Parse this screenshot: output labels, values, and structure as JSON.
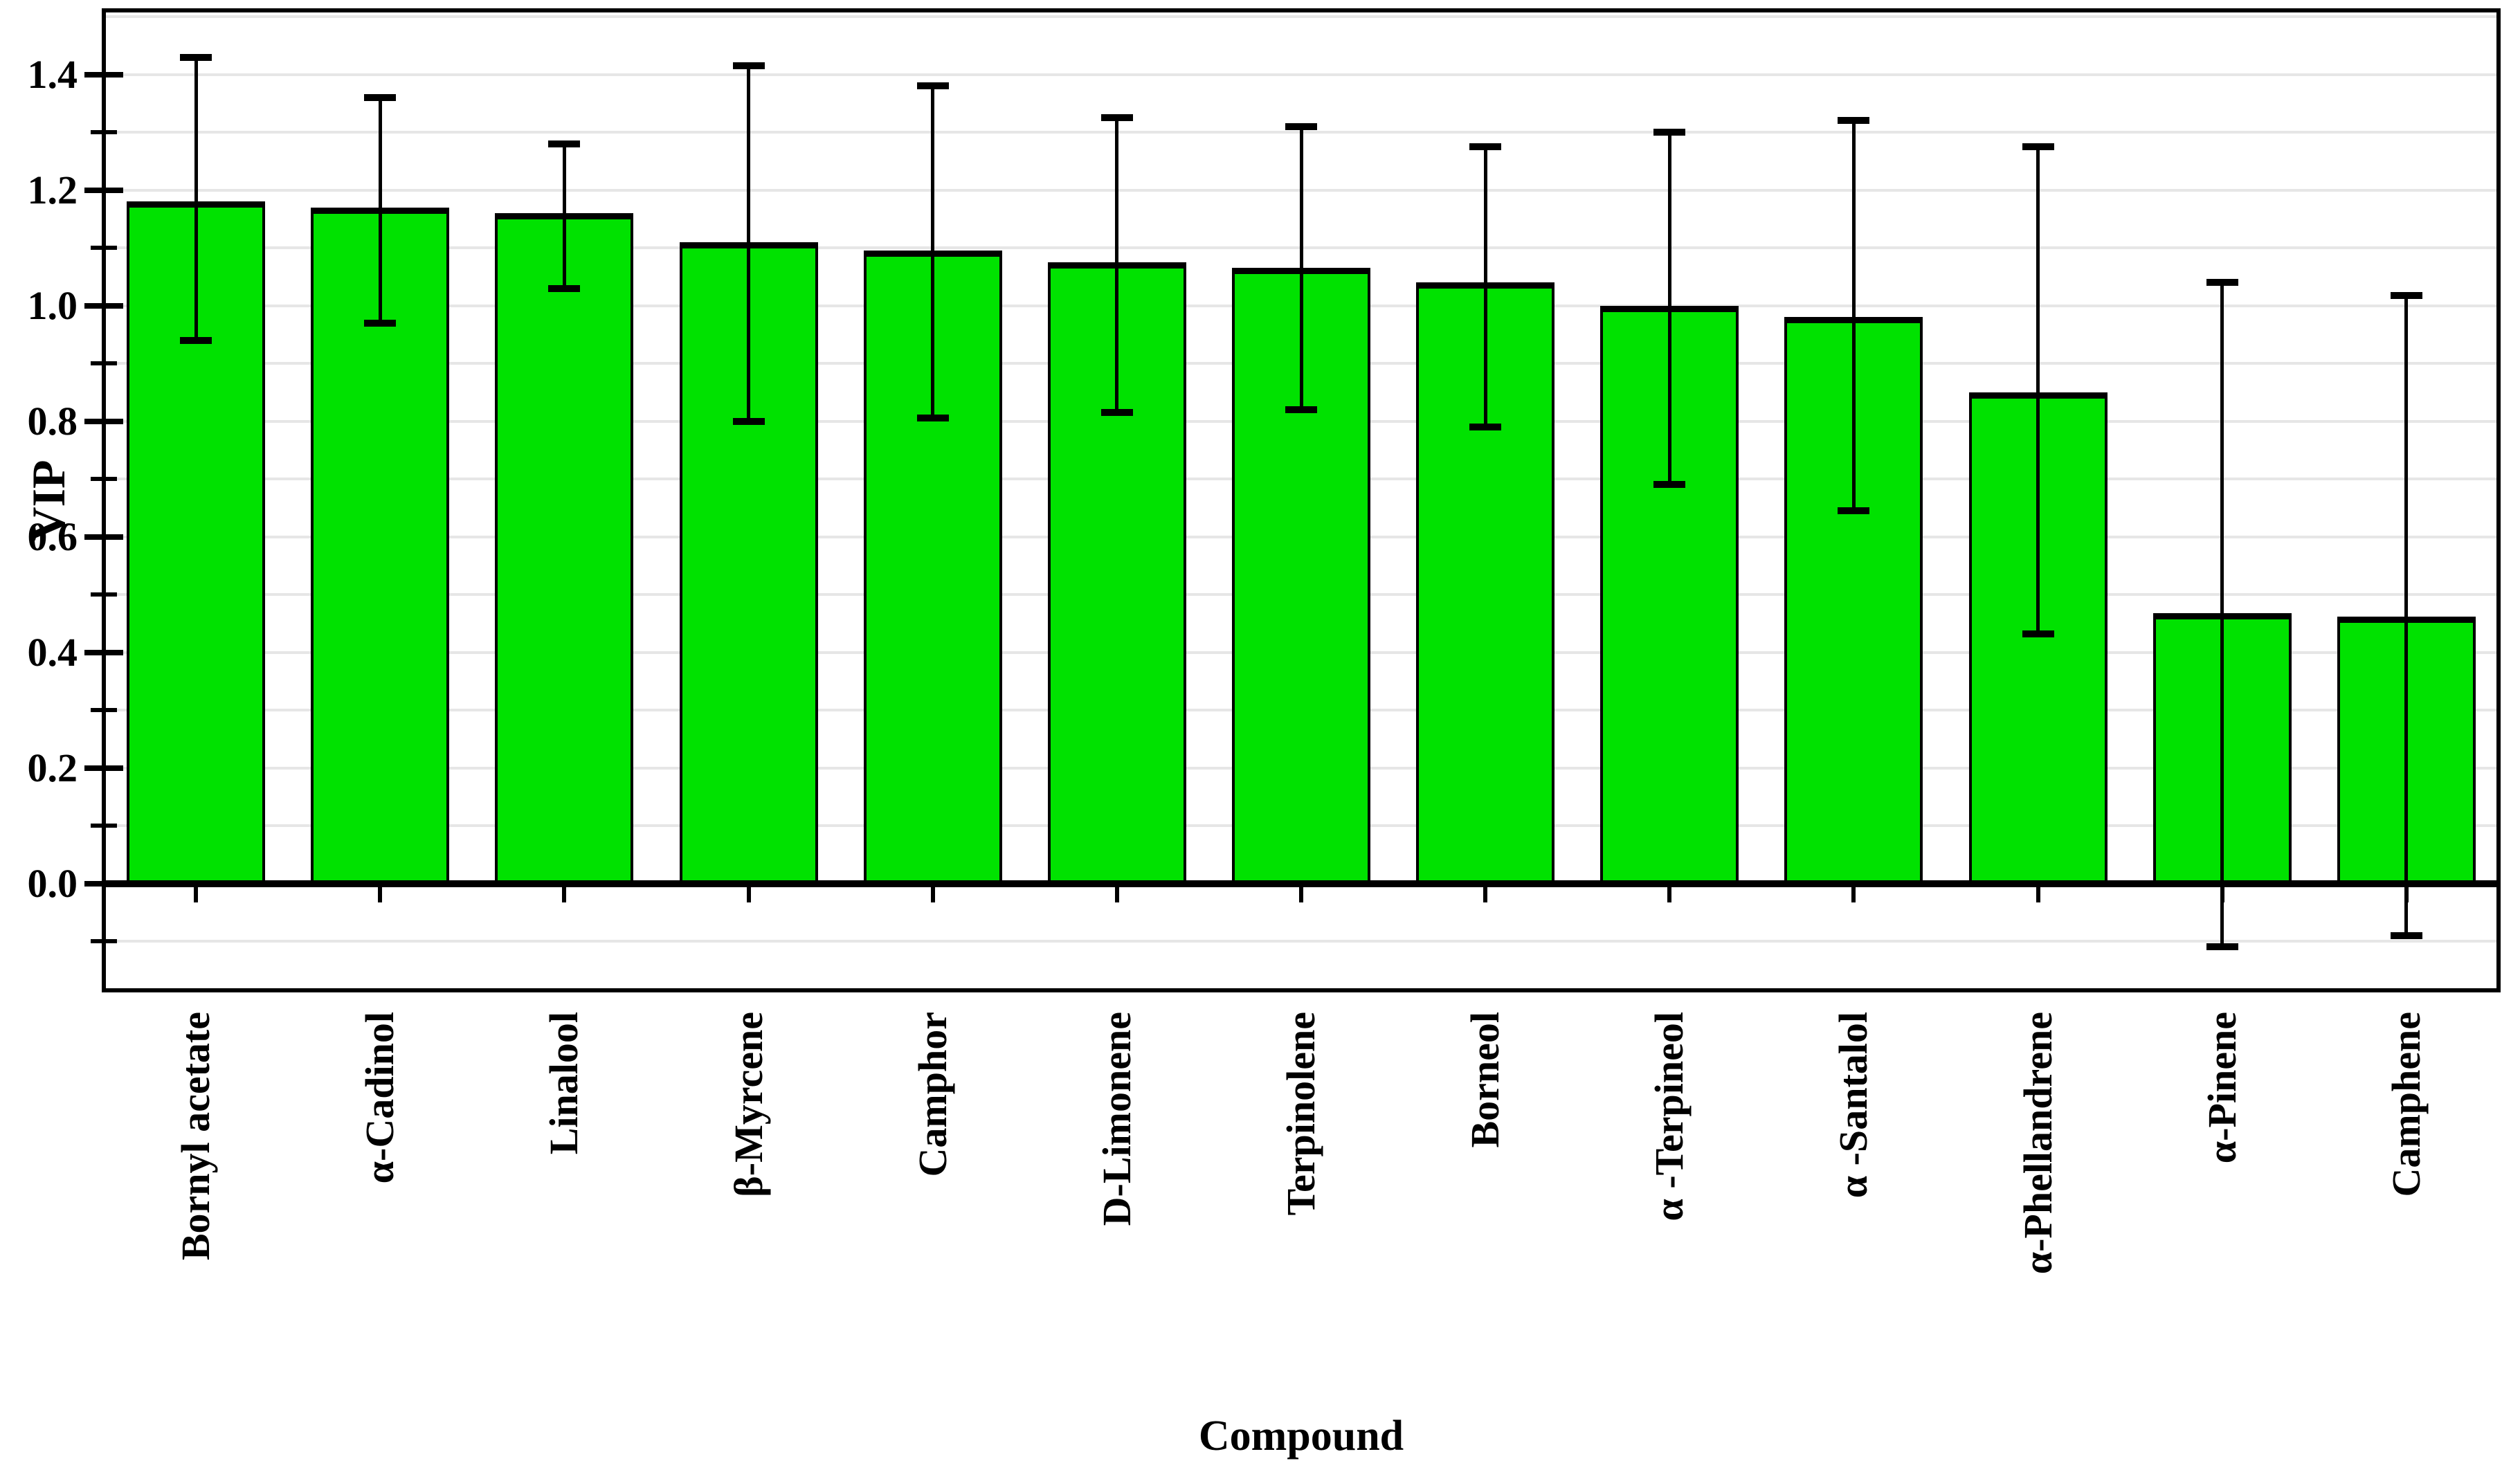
{
  "figure": {
    "background": "#ffffff"
  },
  "chart_data": {
    "type": "bar",
    "title": "",
    "xlabel": "Compound",
    "ylabel": "VIP",
    "legend": "none",
    "grid": "horizontal gridlines every 0.1 from -0.1 to 1.5",
    "categories": [
      "Bornyl acetate",
      "α-Cadinol",
      "Linalool",
      "β-Myrcene",
      "Camphor",
      "D-Limonene",
      "Terpinolene",
      "Borneol",
      "α -Terpineol",
      "α -Santalol",
      "α-Phellandrene",
      "α-Pinene",
      "Camphene"
    ],
    "values": [
      1.18,
      1.17,
      1.16,
      1.11,
      1.095,
      1.075,
      1.065,
      1.04,
      1.0,
      0.98,
      0.85,
      0.468,
      0.462
    ],
    "error_upper": [
      1.43,
      1.36,
      1.28,
      1.415,
      1.38,
      1.325,
      1.31,
      1.275,
      1.3,
      1.32,
      1.275,
      1.04,
      1.017
    ],
    "error_lower": [
      0.94,
      0.97,
      1.03,
      0.8,
      0.805,
      0.815,
      0.82,
      0.79,
      0.69,
      0.645,
      0.432,
      -0.11,
      -0.09
    ],
    "ylim": [
      -0.185,
      1.511
    ],
    "ytick_major": [
      0.0,
      0.2,
      0.4,
      0.6,
      0.8,
      1.0,
      1.2,
      1.4
    ],
    "ytick_minor": [
      -0.1,
      0.1,
      0.3,
      0.5,
      0.7,
      0.9,
      1.1,
      1.3
    ],
    "colors": {
      "bar_fill": "#00e200",
      "bar_border": "#000000",
      "error_bar": "#000000",
      "grid": "#e6e6e6",
      "axis": "#000000",
      "text": "#000000"
    }
  }
}
